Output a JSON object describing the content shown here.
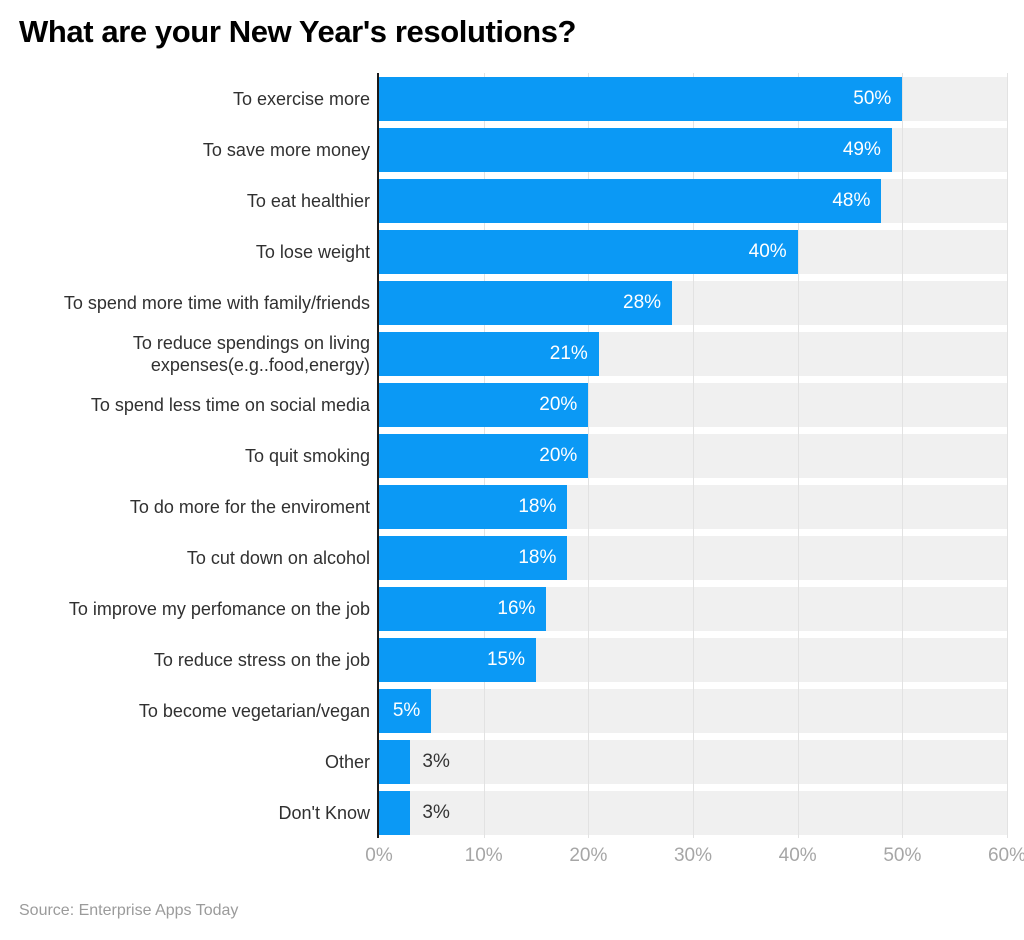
{
  "title": "What are your New Year's resolutions?",
  "source": "Source: Enterprise Apps Today",
  "chart_data": {
    "type": "bar",
    "orientation": "horizontal",
    "title": "What are your New Year's resolutions?",
    "categories": [
      "To exercise more",
      "To save more money",
      "To eat healthier",
      "To lose weight",
      "To spend more time with family/friends",
      "To reduce spendings on living expenses(e.g..food,energy)",
      "To spend less time on social media",
      "To quit smoking",
      "To do more for the enviroment",
      "To cut down on alcohol",
      "To improve my perfomance on the job",
      "To reduce stress on the job",
      "To become vegetarian/vegan",
      "Other",
      "Don't Know"
    ],
    "values": [
      50,
      49,
      48,
      40,
      28,
      21,
      20,
      20,
      18,
      18,
      16,
      15,
      5,
      3,
      3
    ],
    "value_labels": [
      "50%",
      "49%",
      "48%",
      "40%",
      "28%",
      "21%",
      "20%",
      "20%",
      "18%",
      "18%",
      "16%",
      "15%",
      "5%",
      "3%",
      "3%"
    ],
    "xlabel": "",
    "ylabel": "",
    "xlim": [
      0,
      60
    ],
    "x_ticks": [
      "0%",
      "10%",
      "20%",
      "30%",
      "40%",
      "50%",
      "60%"
    ],
    "grid": true,
    "legend": false,
    "label_inside_threshold": 5,
    "colors": {
      "bar": "#0b99f5",
      "track": "#f0f0f0",
      "gridline": "#e2e2e2",
      "axis_line": "#1a1a1a",
      "value_inside": "#ffffff",
      "value_outside": "#333333",
      "category_text": "#303030",
      "tick_text": "#a6a6a6",
      "source_text": "#9b9b9b",
      "title_text": "#000000"
    },
    "source": "Source: Enterprise Apps Today"
  }
}
